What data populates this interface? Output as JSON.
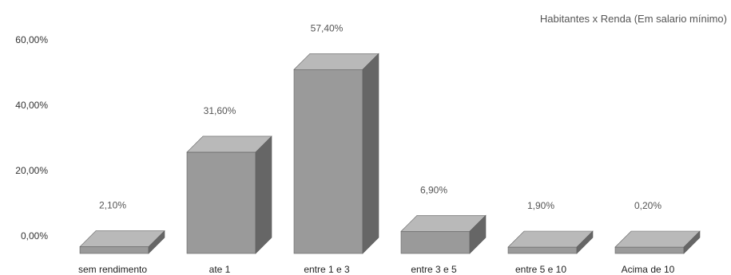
{
  "chart_data": {
    "type": "bar",
    "title": "Habitantes x Renda (Em salario mínimo)",
    "categories": [
      "sem rendimento",
      "ate 1",
      "entre 1 e 3",
      "entre 3 e 5",
      "entre 5 e 10",
      "Acima de 10"
    ],
    "values": [
      2.1,
      31.6,
      57.4,
      6.9,
      1.9,
      0.2
    ],
    "value_labels": [
      "2,10%",
      "31,60%",
      "57,40%",
      "6,90%",
      "1,90%",
      "0,20%"
    ],
    "y_ticks": [
      "0,00%",
      "20,00%",
      "40,00%",
      "60,00%"
    ],
    "y_tick_values": [
      0,
      20,
      40,
      60
    ],
    "ylim": [
      0,
      60
    ],
    "style": "3d-bar",
    "grid": false,
    "colors": {
      "front": "#9a9a9a",
      "top": "#b9b9b9",
      "side": "#666666",
      "outline": "#5f5f5f"
    }
  }
}
